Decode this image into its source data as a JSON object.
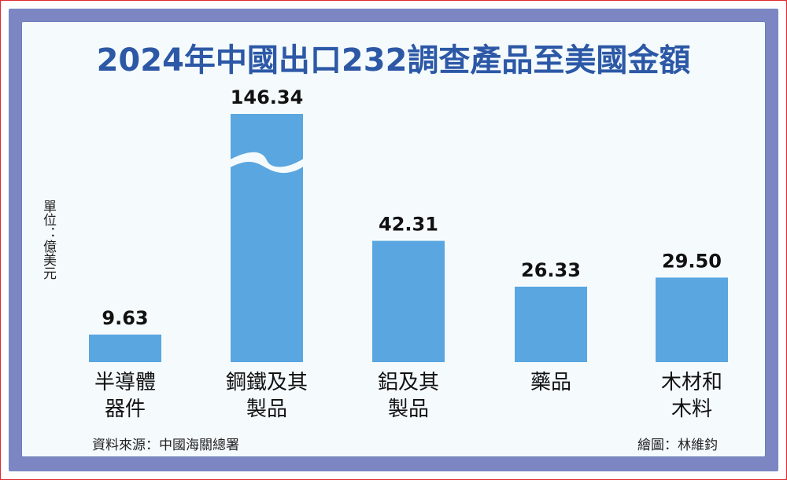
{
  "title": "2024年中國出口232調查產品至美國金額",
  "unit_label": "單位：億美元",
  "source": "資料來源：中國海關總署",
  "credit": "繪圖：林維鈞",
  "colors": {
    "bar": "#5aa6e0",
    "title": "#2c58a6",
    "frame": "#7b86c2"
  },
  "chart_data": {
    "type": "bar",
    "title": "2024年中國出口232調查產品至美國金額",
    "ylabel": "單位：億美元",
    "categories": [
      "半導體器件",
      "鋼鐵及其製品",
      "鋁及其製品",
      "藥品",
      "木材和木料"
    ],
    "category_lines": [
      [
        "半導體",
        "器件"
      ],
      [
        "鋼鐵及其",
        "製品"
      ],
      [
        "鋁及其",
        "製品"
      ],
      [
        "藥品"
      ],
      [
        "木材和",
        "木料"
      ]
    ],
    "values": [
      9.63,
      146.34,
      42.31,
      26.33,
      29.5
    ],
    "value_labels": [
      "9.63",
      "146.34",
      "42.31",
      "26.33",
      "29.50"
    ],
    "axis_break": true,
    "grid": false,
    "legend": "none"
  }
}
